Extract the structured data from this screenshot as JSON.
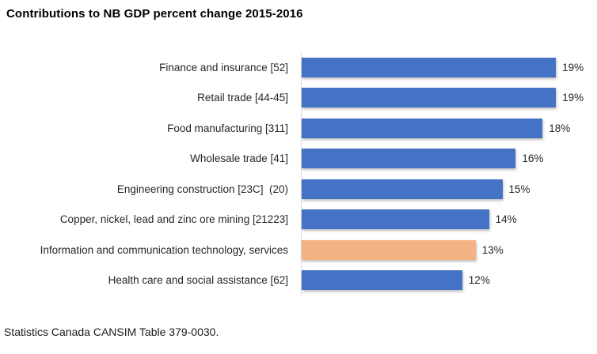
{
  "title": "Contributions to NB GDP percent change 2015-2016",
  "footer": "Statistics Canada CANSIM Table 379-0030.",
  "chart_data": {
    "type": "bar",
    "orientation": "horizontal",
    "title": "Contributions to NB GDP percent change 2015-2016",
    "categories": [
      "Finance and insurance [52]",
      "Retail trade [44-45]",
      "Food manufacturing [311]",
      "Wholesale trade [41]",
      "Engineering construction [23C]  (20)",
      "Copper, nickel, lead and zinc ore mining [21223]",
      "Information and communication technology, services",
      "Health care and social assistance [62]"
    ],
    "values": [
      19,
      19,
      18,
      16,
      15,
      14,
      13,
      12
    ],
    "data_labels": [
      "19%",
      "19%",
      "18%",
      "16%",
      "15%",
      "14%",
      "13%",
      "12%"
    ],
    "unit": "%",
    "highlight_index": 6,
    "colors": {
      "bar_default": "#4472C4",
      "bar_highlight": "#F4B183",
      "axis_line": "#D9D9D9",
      "text": "#262626"
    },
    "xlim": [
      0,
      22
    ],
    "grid": false,
    "legend": false,
    "data_labels_position": "outside-end",
    "source_note": "Statistics Canada CANSIM Table 379-0030."
  }
}
